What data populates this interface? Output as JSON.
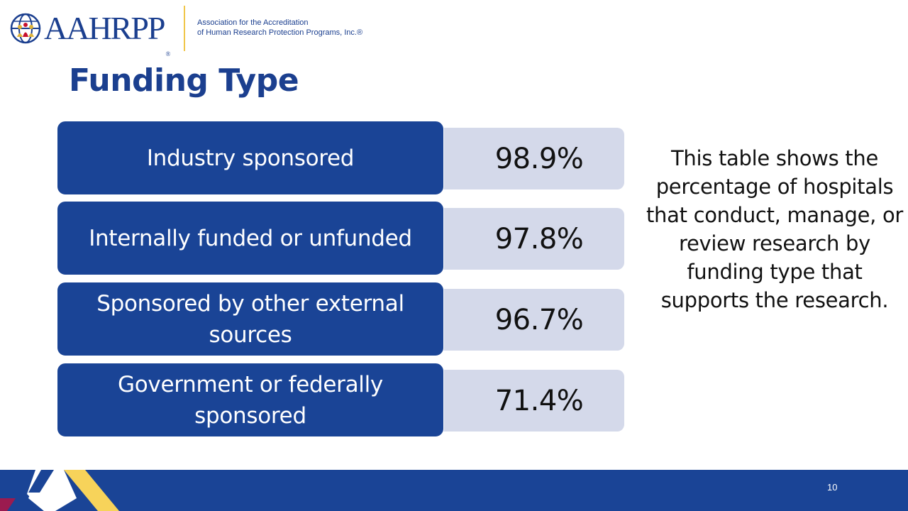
{
  "header": {
    "logo_text": "AAHRPP",
    "logo_registered": "®",
    "org_line1": "Association for the Accreditation",
    "org_line2": "of Human Research Protection Programs, Inc.®"
  },
  "title": "Funding Type",
  "table": {
    "rows": [
      {
        "label": "Industry sponsored",
        "value": "98.9%",
        "percent": 98.9
      },
      {
        "label": "Internally funded or unfunded",
        "value": "97.8%",
        "percent": 97.8
      },
      {
        "label": "Sponsored by other external sources",
        "value": "96.7%",
        "percent": 96.7
      },
      {
        "label": "Government or federally sponsored",
        "value": "71.4%",
        "percent": 71.4
      }
    ]
  },
  "description": "This table shows the percentage of hospitals that conduct, manage, or review research by funding type that supports the research.",
  "footer": {
    "page_number": "10"
  },
  "colors": {
    "brand_blue": "#1a4496",
    "light_blue": "#d4d9ea",
    "gold": "#f7d35a",
    "maroon": "#9b1b4f"
  }
}
